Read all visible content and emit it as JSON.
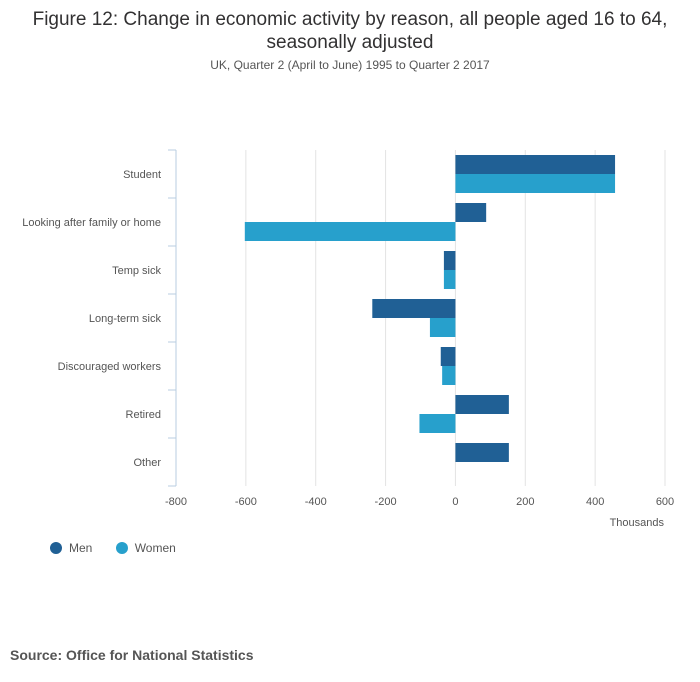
{
  "title": "Figure 12: Change in economic activity by reason, all people aged 16 to 64, seasonally adjusted",
  "subtitle": "UK, Quarter 2 (April to June) 1995 to Quarter 2 2017",
  "source": "Source: Office for National Statistics",
  "colors": {
    "men": "#206095",
    "women": "#27a0cc",
    "grid": "#e3e3e3",
    "axis": "#b8cde0"
  },
  "chart_data": {
    "type": "bar",
    "orientation": "horizontal",
    "categories": [
      "Student",
      "Looking after family or home",
      "Temp sick",
      "Long-term sick",
      "Discouraged workers",
      "Retired",
      "Other"
    ],
    "series": [
      {
        "name": "Men",
        "values": [
          457,
          88,
          -33,
          -238,
          -42,
          153,
          153
        ]
      },
      {
        "name": "Women",
        "values": [
          457,
          -603,
          -33,
          -73,
          -38,
          -103,
          0
        ]
      }
    ],
    "xlim": [
      -800,
      600
    ],
    "xticks": [
      -800,
      -600,
      -400,
      -200,
      0,
      200,
      400,
      600
    ],
    "xlabel": "Thousands",
    "grid": true,
    "legend": "bottom-left"
  }
}
